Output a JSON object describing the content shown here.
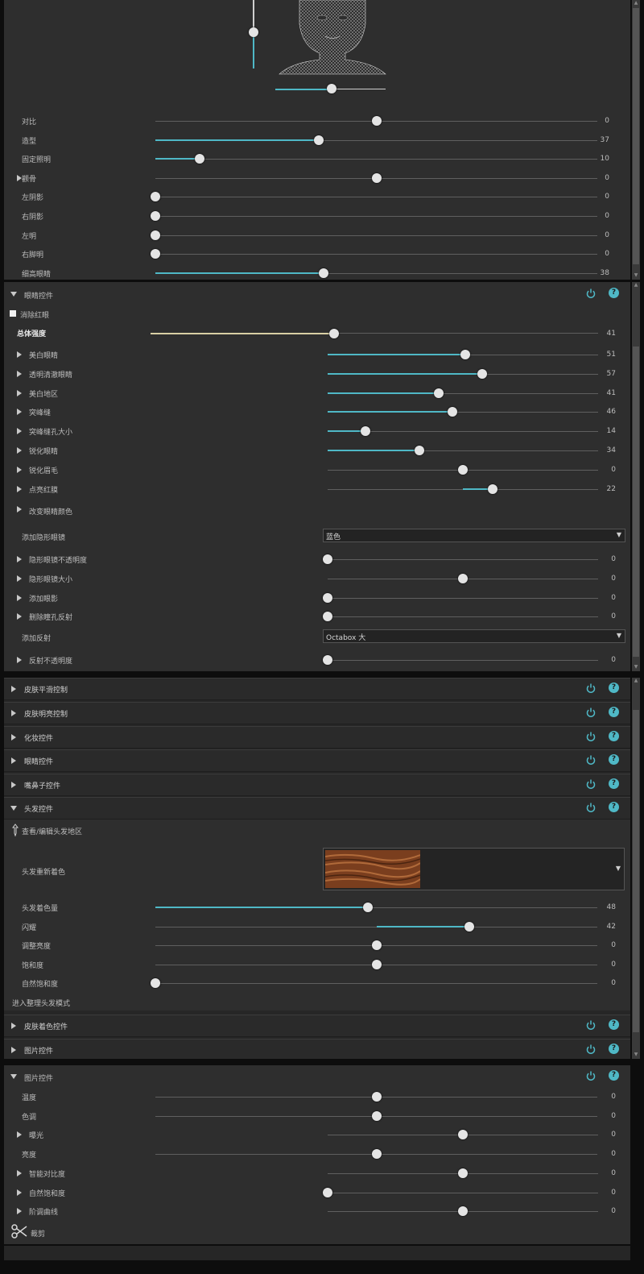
{
  "colors": {
    "accent": "#4fb8c6",
    "panel": "#2e2e2e",
    "header": "#2a2a2a",
    "knob": "#e4e4e4",
    "master_fill": "#d8cfa4"
  },
  "face_sliders": [
    {
      "label": "对比",
      "value": "0",
      "pct": 0.5,
      "from": 0.5,
      "arrow": false
    },
    {
      "label": "造型",
      "value": "37",
      "pct": 0.37,
      "from": 0,
      "arrow": false
    },
    {
      "label": "固定照明",
      "value": "10",
      "pct": 0.1,
      "from": 0,
      "arrow": false
    },
    {
      "label": "颧骨",
      "value": "0",
      "pct": 0.5,
      "from": 0.5,
      "arrow": true
    },
    {
      "label": "左阴影",
      "value": "0",
      "pct": 0,
      "from": 0,
      "arrow": false
    },
    {
      "label": "右阴影",
      "value": "0",
      "pct": 0,
      "from": 0,
      "arrow": false
    },
    {
      "label": "左明",
      "value": "0",
      "pct": 0,
      "from": 0,
      "arrow": false
    },
    {
      "label": "右脚明",
      "value": "0",
      "pct": 0,
      "from": 0,
      "arrow": false
    },
    {
      "label": "细高眼睛",
      "value": "38",
      "pct": 0.38,
      "from": 0,
      "arrow": false
    }
  ],
  "eye_panel": {
    "title": "眼睛控件",
    "remove_red_eye": "消除红眼",
    "master": {
      "label": "总体强度",
      "value": "41",
      "pct": 0.41
    },
    "sliders": [
      {
        "label": "美白眼睛",
        "value": "51",
        "pct": 0.51,
        "from": 0
      },
      {
        "label": "透明清澈眼睛",
        "value": "57",
        "pct": 0.57,
        "from": 0
      },
      {
        "label": "美白地区",
        "value": "41",
        "pct": 0.41,
        "from": 0
      },
      {
        "label": "突峰缝",
        "value": "46",
        "pct": 0.46,
        "from": 0
      },
      {
        "label": "突峰缝孔大小",
        "value": "14",
        "pct": 0.14,
        "from": 0
      },
      {
        "label": "锐化眼睛",
        "value": "34",
        "pct": 0.34,
        "from": 0
      },
      {
        "label": "锐化眉毛",
        "value": "0",
        "pct": 0.5,
        "from": 0.5
      },
      {
        "label": "点亮红膜",
        "value": "22",
        "pct": 0.61,
        "from": 0.5
      }
    ],
    "change_eye_color": "改变眼睛颜色",
    "contact_label": "添加隐形眼镜",
    "contact_value": "蓝色",
    "contact_sliders": [
      {
        "label": "隐形眼镜不透明度",
        "value": "0",
        "pct": 0,
        "from": 0
      },
      {
        "label": "隐形眼镜大小",
        "value": "0",
        "pct": 0.5,
        "from": 0.5
      },
      {
        "label": "添加眼影",
        "value": "0",
        "pct": 0,
        "from": 0
      },
      {
        "label": "删除瞳孔反射",
        "value": "0",
        "pct": 0,
        "from": 0
      }
    ],
    "reflection_label": "添加反射",
    "reflection_value": "Octabox 大",
    "reflection_opacity": {
      "label": "反射不透明度",
      "value": "0",
      "pct": 0,
      "from": 0
    }
  },
  "collapsed_headers": [
    {
      "title": "皮肤平滑控制"
    },
    {
      "title": "皮肤明亮控制"
    },
    {
      "title": "化妆控件"
    },
    {
      "title": "眼睛控件"
    },
    {
      "title": "嘴鼻子控件"
    }
  ],
  "hair_panel": {
    "title": "头发控件",
    "view_edit": "查看/编辑头发地区",
    "recolor_label": "头发重新着色",
    "swatch_color": "#7a3e1e",
    "sliders": [
      {
        "label": "头发着色量",
        "value": "48",
        "pct": 0.48,
        "from": 0
      },
      {
        "label": "闪耀",
        "value": "42",
        "pct": 0.71,
        "from": 0.5
      },
      {
        "label": "调整亮度",
        "value": "0",
        "pct": 0.5,
        "from": 0.5
      },
      {
        "label": "饱和度",
        "value": "0",
        "pct": 0.5,
        "from": 0.5
      },
      {
        "label": "自然饱和度",
        "value": "0",
        "pct": 0,
        "from": 0
      }
    ],
    "enter_mode": "进入整理头发模式"
  },
  "after_hair_headers": [
    {
      "title": "皮肤着色控件"
    },
    {
      "title": "图片控件"
    }
  ],
  "photo_panel": {
    "title": "图片控件",
    "sliders": [
      {
        "label": "温度",
        "value": "0",
        "pct": 0.5,
        "from": 0.5,
        "arrow": false,
        "wide": true
      },
      {
        "label": "色调",
        "value": "0",
        "pct": 0.5,
        "from": 0.5,
        "arrow": false,
        "wide": true
      },
      {
        "label": "曝光",
        "value": "0",
        "pct": 0.5,
        "from": 0.5,
        "arrow": true,
        "wide": false
      },
      {
        "label": "亮度",
        "value": "0",
        "pct": 0.5,
        "from": 0.5,
        "arrow": false,
        "wide": true
      },
      {
        "label": "智能对比度",
        "value": "0",
        "pct": 0.5,
        "from": 0.5,
        "arrow": true,
        "wide": false
      },
      {
        "label": "自然饱和度",
        "value": "0",
        "pct": 0,
        "from": 0,
        "arrow": true,
        "wide": false
      },
      {
        "label": "阶调曲线",
        "value": "0",
        "pct": 0.5,
        "from": 0.5,
        "arrow": true,
        "wide": false
      }
    ],
    "crop_label": "裁剪"
  },
  "icons": {
    "power": "power-icon",
    "help": "help-icon",
    "help_glyph": "?",
    "expand": "triangle-right-icon",
    "collapse": "triangle-down-icon",
    "scissors": "scissors-icon",
    "eyedropper": "eyedropper-icon"
  }
}
